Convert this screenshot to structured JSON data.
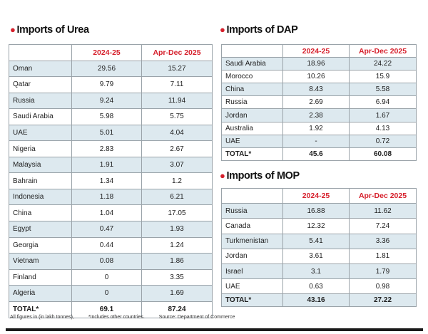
{
  "urea": {
    "title": "Imports of Urea",
    "headers": [
      "",
      "2024-25",
      "Apr-Dec 2025"
    ],
    "rows": [
      [
        "Oman",
        "29.56",
        "15.27"
      ],
      [
        "Qatar",
        "9.79",
        "7.11"
      ],
      [
        "Russia",
        "9.24",
        "11.94"
      ],
      [
        "Saudi Arabia",
        "5.98",
        "5.75"
      ],
      [
        "UAE",
        "5.01",
        "4.04"
      ],
      [
        "Nigeria",
        "2.83",
        "2.67"
      ],
      [
        "Malaysia",
        "1.91",
        "3.07"
      ],
      [
        "Bahrain",
        "1.34",
        "1.2"
      ],
      [
        "Indonesia",
        "1.18",
        "6.21"
      ],
      [
        "China",
        "1.04",
        "17.05"
      ],
      [
        "Egypt",
        "0.47",
        "1.93"
      ],
      [
        "Georgia",
        "0.44",
        "1.24"
      ],
      [
        "Vietnam",
        "0.08",
        "1.86"
      ],
      [
        "Finland",
        "0",
        "3.35"
      ],
      [
        "Algeria",
        "0",
        "1.69"
      ]
    ],
    "total": [
      "TOTAL*",
      "69.1",
      "87.24"
    ]
  },
  "dap": {
    "title": "Imports of DAP",
    "headers": [
      "",
      "2024-25",
      "Apr-Dec 2025"
    ],
    "rows": [
      [
        "Saudi Arabia",
        "18.96",
        "24.22"
      ],
      [
        "Morocco",
        "10.26",
        "15.9"
      ],
      [
        "China",
        "8.43",
        "5.58"
      ],
      [
        "Russia",
        "2.69",
        "6.94"
      ],
      [
        "Jordan",
        "2.38",
        "1.67"
      ],
      [
        "Australia",
        "1.92",
        "4.13"
      ],
      [
        "UAE",
        "-",
        "0.72"
      ]
    ],
    "total": [
      "TOTAL*",
      "45.6",
      "60.08"
    ]
  },
  "mop": {
    "title": "Imports of MOP",
    "headers": [
      "",
      "2024-25",
      "Apr-Dec 2025"
    ],
    "rows": [
      [
        "Russia",
        "16.88",
        "11.62"
      ],
      [
        "Canada",
        "12.32",
        "7.24"
      ],
      [
        "Turkmenistan",
        "5.41",
        "3.36"
      ],
      [
        "Jordan",
        "3.61",
        "1.81"
      ],
      [
        "Israel",
        "3.1",
        "1.79"
      ],
      [
        "UAE",
        "0.63",
        "0.98"
      ]
    ],
    "total": [
      "TOTAL*",
      "43.16",
      "27.22"
    ]
  },
  "footnotes": [
    "All figures in (in lakh tonnes),",
    "*Includes other countries.",
    "Source: Department of Commerce"
  ],
  "colors": {
    "accent": "#d6202c",
    "row_shade": "#dde9ef",
    "border": "#9aa3a9"
  }
}
